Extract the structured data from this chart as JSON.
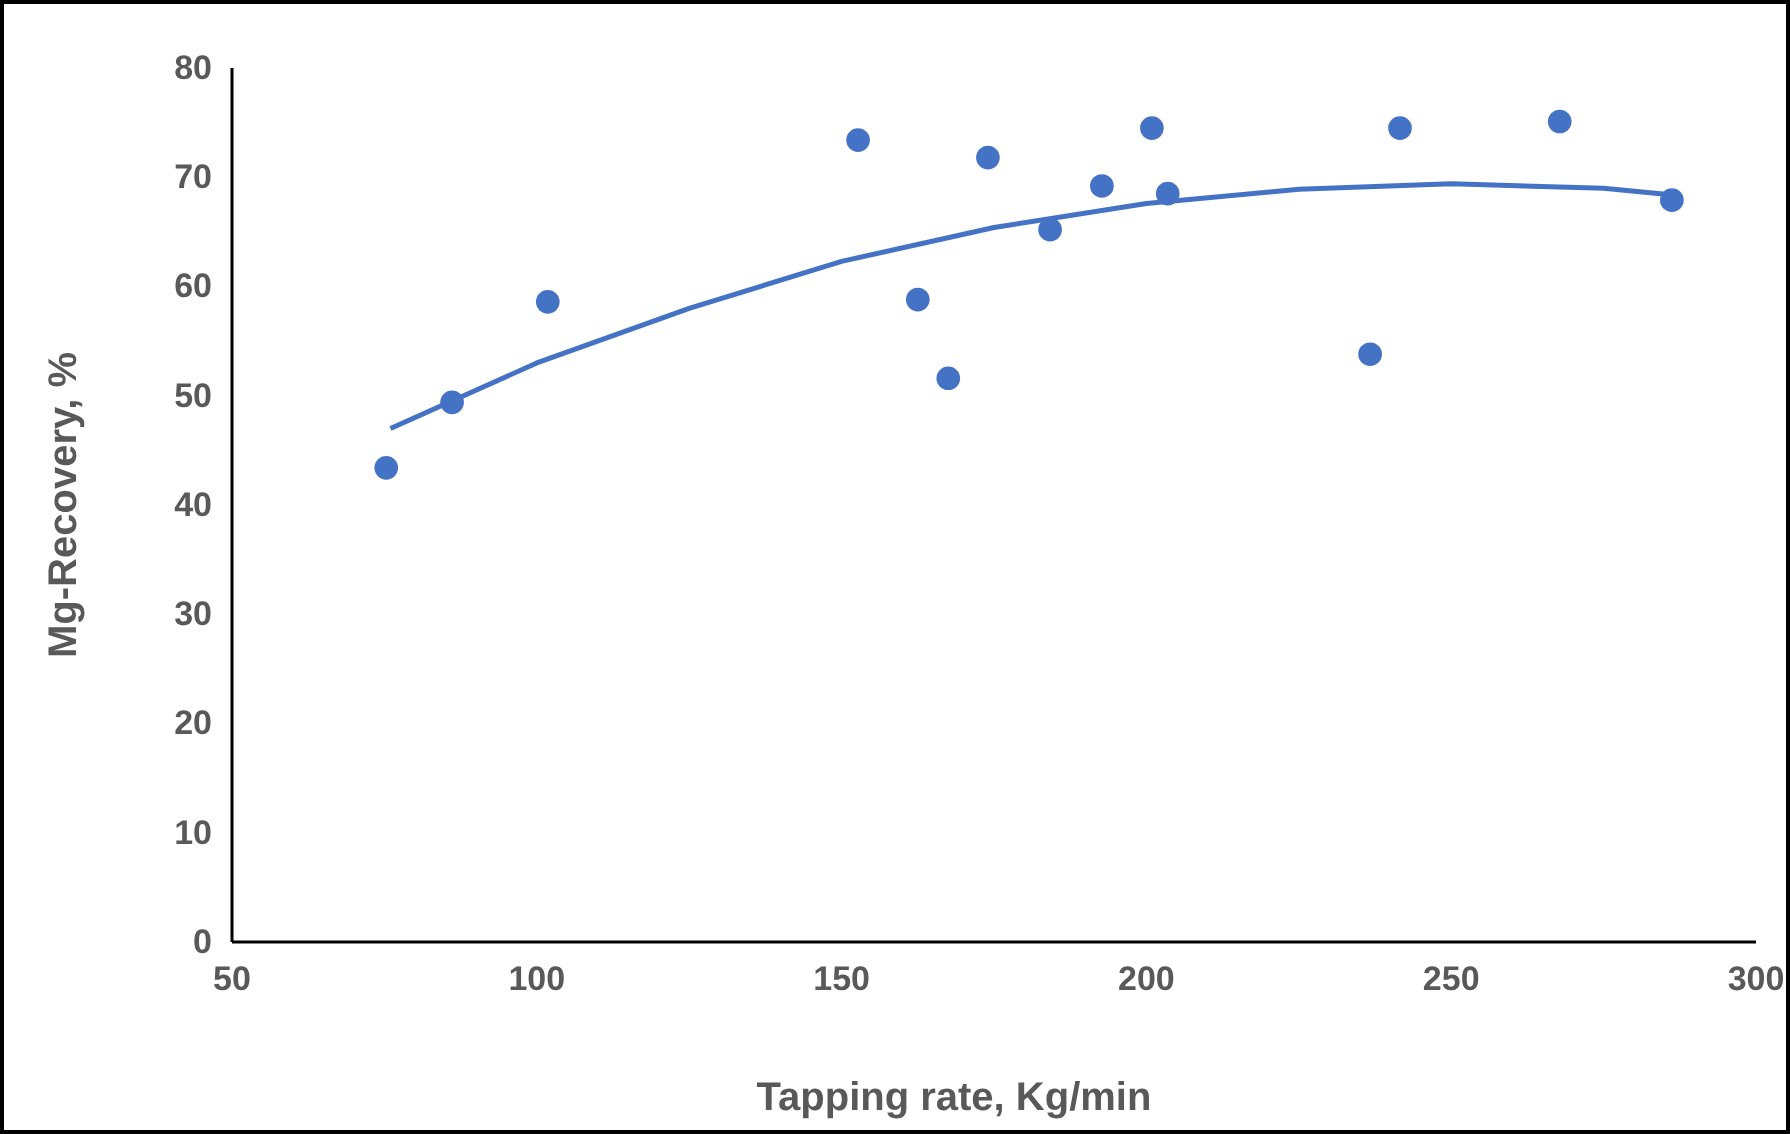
{
  "chart_data": {
    "type": "scatter",
    "xlabel": "Tapping rate, Kg/min",
    "ylabel": "Mg-Recovery, %",
    "xlim": [
      50,
      300
    ],
    "xticks": [
      50,
      100,
      150,
      200,
      250,
      300
    ],
    "ylim": [
      0,
      80
    ],
    "yticks": [
      0,
      10,
      20,
      30,
      40,
      50,
      60,
      70,
      80
    ],
    "grid": false,
    "marker": "circle",
    "series": [
      {
        "color": "#4472c4",
        "x": [
          75.3,
          86.1,
          101.8,
          152.7,
          162.5,
          167.5,
          174.0,
          184.2,
          192.7,
          200.9,
          203.5,
          236.7,
          241.6,
          267.8,
          286.2
        ],
        "values": [
          43.4,
          49.4,
          58.6,
          73.4,
          58.8,
          51.6,
          71.8,
          65.2,
          69.2,
          74.5,
          68.5,
          53.8,
          74.5,
          75.1,
          67.9
        ]
      },
      {
        "type": "line",
        "color": "#4472c4",
        "marker": "none",
        "line_style": "solid",
        "x": [
          76,
          100,
          125,
          150,
          175,
          200,
          225,
          250,
          275,
          286
        ],
        "values": [
          47.0,
          53.0,
          58.0,
          62.3,
          65.4,
          67.6,
          68.9,
          69.4,
          69.0,
          68.4
        ]
      }
    ]
  }
}
